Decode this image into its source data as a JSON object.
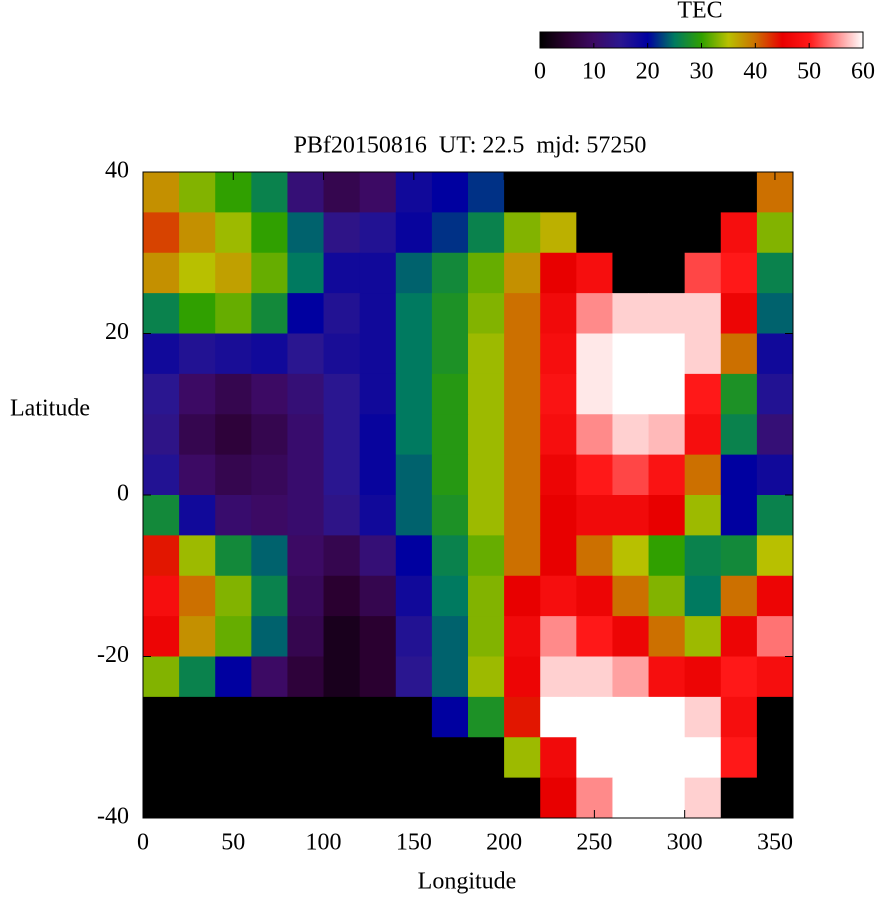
{
  "chart_data": {
    "type": "heatmap",
    "title": "PBf20150816  UT: 22.5  mjd: 57250",
    "x_label": "Longitude",
    "y_label": "Latitude",
    "colorbar_label": "TEC",
    "xlim": [
      0,
      360
    ],
    "ylim": [
      -40,
      40
    ],
    "xticks": [
      0,
      50,
      100,
      150,
      200,
      250,
      300,
      350
    ],
    "yticks": [
      -40,
      -20,
      0,
      20,
      40
    ],
    "clim": [
      0,
      60
    ],
    "cticks": [
      0,
      10,
      20,
      30,
      40,
      50,
      60
    ],
    "colormap": [
      "#000000",
      "#2a0030",
      "#3c0a64",
      "#2a1690",
      "#0000a0",
      "#007a60",
      "#30a000",
      "#b8c000",
      "#cc7000",
      "#e80000",
      "#ff1818",
      "#ff8a8a",
      "#ffffff"
    ],
    "x": [
      10,
      30,
      50,
      70,
      90,
      110,
      130,
      150,
      170,
      190,
      210,
      230,
      250,
      270,
      290,
      310,
      330,
      350
    ],
    "y": [
      37.5,
      32.5,
      27.5,
      22.5,
      17.5,
      12.5,
      7.5,
      2.5,
      -2.5,
      -7.5,
      -12.5,
      -17.5,
      -22.5,
      -27.5,
      -32.5,
      -37.5
    ],
    "z": [
      [
        38,
        33,
        30,
        26,
        12,
        8,
        10,
        18,
        20,
        22,
        0,
        0,
        0,
        0,
        0,
        0,
        0,
        40
      ],
      [
        42,
        38,
        34,
        30,
        24,
        14,
        16,
        19,
        22,
        26,
        33,
        36,
        0,
        0,
        0,
        0,
        48,
        33
      ],
      [
        38,
        35,
        37,
        32,
        25,
        18,
        18,
        24,
        27,
        32,
        38,
        45,
        48,
        0,
        0,
        52,
        50,
        26
      ],
      [
        26,
        30,
        32,
        27,
        20,
        16,
        18,
        25,
        28,
        33,
        40,
        47,
        55,
        58,
        58,
        58,
        46,
        24
      ],
      [
        18,
        16,
        17,
        18,
        15,
        17,
        18,
        25,
        28,
        34,
        40,
        48,
        59,
        60,
        60,
        58,
        40,
        18
      ],
      [
        15,
        10,
        8,
        10,
        12,
        15,
        18,
        25,
        29,
        34,
        40,
        49,
        59,
        60,
        60,
        50,
        28,
        16
      ],
      [
        14,
        8,
        6,
        8,
        11,
        15,
        19,
        25,
        29,
        34,
        40,
        48,
        55,
        58,
        57,
        48,
        26,
        12
      ],
      [
        16,
        10,
        8,
        9,
        11,
        15,
        19,
        24,
        29,
        34,
        40,
        46,
        50,
        52,
        49,
        40,
        20,
        18
      ],
      [
        27,
        18,
        11,
        10,
        11,
        14,
        18,
        24,
        28,
        34,
        40,
        45,
        47,
        47,
        45,
        34,
        20,
        26
      ],
      [
        44,
        34,
        27,
        24,
        10,
        8,
        12,
        20,
        26,
        32,
        40,
        45,
        40,
        35,
        30,
        26,
        27,
        35
      ],
      [
        48,
        40,
        33,
        26,
        9,
        5,
        8,
        18,
        25,
        33,
        45,
        48,
        46,
        40,
        33,
        25,
        40,
        46
      ],
      [
        46,
        38,
        32,
        24,
        8,
        3,
        5,
        16,
        24,
        33,
        47,
        55,
        50,
        46,
        40,
        34,
        46,
        54
      ],
      [
        33,
        26,
        20,
        10,
        6,
        3,
        5,
        15,
        24,
        34,
        46,
        58,
        58,
        56,
        48,
        46,
        50,
        48
      ],
      [
        0,
        0,
        0,
        0,
        0,
        0,
        0,
        0,
        20,
        28,
        44,
        60,
        60,
        60,
        60,
        58,
        48,
        0
      ],
      [
        0,
        0,
        0,
        0,
        0,
        0,
        0,
        0,
        0,
        0,
        34,
        47,
        60,
        60,
        60,
        60,
        50,
        0
      ],
      [
        0,
        0,
        0,
        0,
        0,
        0,
        0,
        0,
        0,
        0,
        0,
        45,
        55,
        60,
        60,
        58,
        0,
        0
      ]
    ]
  }
}
